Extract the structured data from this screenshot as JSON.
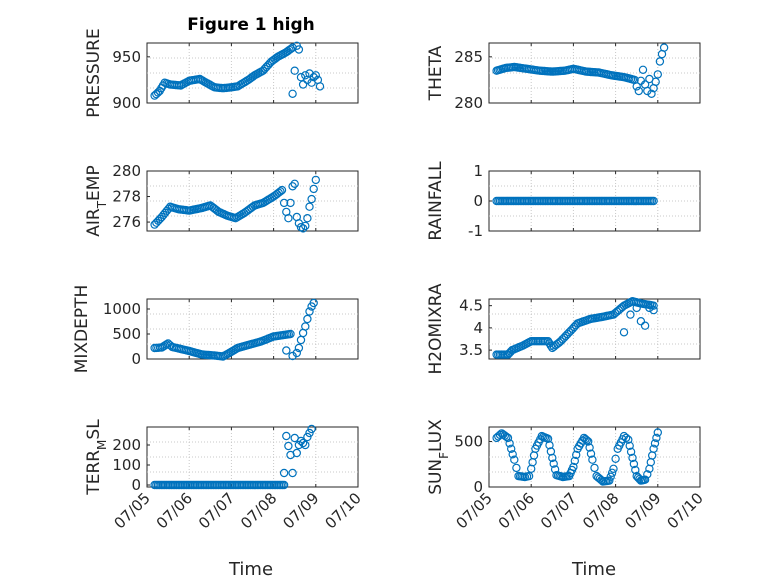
{
  "figure": {
    "title": "Figure 1 high",
    "marker_color": "#0072BD",
    "x_ticks": [
      "07/05",
      "07/06",
      "07/07",
      "07/08",
      "07/09",
      "07/10"
    ],
    "xlabel": "Time"
  },
  "chart_data": [
    {
      "type": "scatter",
      "ylabel": "PRESSURE",
      "ylabel_parts": [
        {
          "text": "PRESSURE",
          "sub": false
        }
      ],
      "title": "Figure 1 high",
      "xlim": [
        0,
        5
      ],
      "ylim": [
        900,
        965
      ],
      "yticks": [
        900,
        950
      ],
      "ytick_labels": [
        "900",
        "950"
      ],
      "show_xticklabels": false,
      "anchors": [
        [
          0.18,
          908
        ],
        [
          0.3,
          913
        ],
        [
          0.42,
          922
        ],
        [
          0.55,
          920
        ],
        [
          0.8,
          919
        ],
        [
          1.0,
          924
        ],
        [
          1.25,
          926
        ],
        [
          1.4,
          922
        ],
        [
          1.6,
          917
        ],
        [
          1.8,
          916
        ],
        [
          2.0,
          917
        ],
        [
          2.15,
          918
        ],
        [
          2.4,
          925
        ],
        [
          2.55,
          930
        ],
        [
          2.75,
          935
        ],
        [
          2.95,
          945
        ],
        [
          3.1,
          950
        ],
        [
          3.3,
          955
        ],
        [
          3.45,
          960
        ]
      ],
      "extra": [
        [
          3.45,
          910
        ],
        [
          3.5,
          935
        ],
        [
          3.55,
          962
        ],
        [
          3.6,
          958
        ],
        [
          3.65,
          928
        ],
        [
          3.7,
          920
        ],
        [
          3.75,
          930
        ],
        [
          3.8,
          925
        ],
        [
          3.85,
          932
        ],
        [
          3.9,
          922
        ],
        [
          3.95,
          928
        ],
        [
          4.0,
          930
        ],
        [
          4.05,
          925
        ],
        [
          4.1,
          918
        ]
      ]
    },
    {
      "type": "scatter",
      "ylabel": "THETA",
      "ylabel_parts": [
        {
          "text": "THETA",
          "sub": false
        }
      ],
      "xlim": [
        0,
        5
      ],
      "ylim": [
        280,
        286.5
      ],
      "yticks": [
        280,
        285
      ],
      "ytick_labels": [
        "280",
        "285"
      ],
      "show_xticklabels": false,
      "anchors": [
        [
          0.18,
          283.5
        ],
        [
          0.4,
          283.8
        ],
        [
          0.6,
          283.9
        ],
        [
          0.9,
          283.7
        ],
        [
          1.2,
          283.5
        ],
        [
          1.5,
          283.4
        ],
        [
          1.8,
          283.5
        ],
        [
          2.0,
          283.7
        ],
        [
          2.3,
          283.4
        ],
        [
          2.6,
          283.3
        ],
        [
          2.9,
          283.0
        ],
        [
          3.2,
          282.8
        ],
        [
          3.45,
          282.5
        ]
      ],
      "extra": [
        [
          3.5,
          281.8
        ],
        [
          3.55,
          281.3
        ],
        [
          3.6,
          282.4
        ],
        [
          3.65,
          283.6
        ],
        [
          3.7,
          282.0
        ],
        [
          3.75,
          281.3
        ],
        [
          3.8,
          282.6
        ],
        [
          3.85,
          281.0
        ],
        [
          3.9,
          281.6
        ],
        [
          3.95,
          282.3
        ],
        [
          4.0,
          283.1
        ],
        [
          4.05,
          284.5
        ],
        [
          4.1,
          285.3
        ],
        [
          4.15,
          286.0
        ]
      ]
    },
    {
      "type": "scatter",
      "ylabel": "AIR_TEMP",
      "ylabel_parts": [
        {
          "text": "AIR",
          "sub": false
        },
        {
          "text": "T",
          "sub": true
        },
        {
          "text": "EMP",
          "sub": false
        }
      ],
      "xlim": [
        0,
        5
      ],
      "ylim": [
        275.3,
        280
      ],
      "yticks": [
        276,
        278,
        280
      ],
      "ytick_labels": [
        "276",
        "278",
        "280"
      ],
      "show_xticklabels": false,
      "anchors": [
        [
          0.18,
          275.8
        ],
        [
          0.35,
          276.4
        ],
        [
          0.55,
          277.2
        ],
        [
          0.75,
          277.0
        ],
        [
          1.0,
          276.9
        ],
        [
          1.3,
          277.1
        ],
        [
          1.5,
          277.3
        ],
        [
          1.7,
          276.8
        ],
        [
          1.9,
          276.5
        ],
        [
          2.1,
          276.3
        ],
        [
          2.3,
          276.7
        ],
        [
          2.55,
          277.3
        ],
        [
          2.75,
          277.5
        ],
        [
          3.0,
          278.0
        ],
        [
          3.2,
          278.5
        ]
      ],
      "extra": [
        [
          3.25,
          277.5
        ],
        [
          3.3,
          276.8
        ],
        [
          3.35,
          276.3
        ],
        [
          3.4,
          277.5
        ],
        [
          3.45,
          278.8
        ],
        [
          3.5,
          279.0
        ],
        [
          3.55,
          276.4
        ],
        [
          3.6,
          275.9
        ],
        [
          3.65,
          275.6
        ],
        [
          3.7,
          275.5
        ],
        [
          3.75,
          275.7
        ],
        [
          3.8,
          276.3
        ],
        [
          3.85,
          277.2
        ],
        [
          3.9,
          277.8
        ],
        [
          3.95,
          278.6
        ],
        [
          4.0,
          279.3
        ]
      ]
    },
    {
      "type": "scatter",
      "ylabel": "RAINFALL",
      "ylabel_parts": [
        {
          "text": "RAINFALL",
          "sub": false
        }
      ],
      "xlim": [
        0,
        5
      ],
      "ylim": [
        -1,
        1
      ],
      "yticks": [
        -1,
        0,
        1
      ],
      "ytick_labels": [
        "-1",
        "0",
        "1"
      ],
      "show_xticklabels": false,
      "anchors": [
        [
          0.18,
          0
        ],
        [
          3.9,
          0
        ]
      ],
      "extra": []
    },
    {
      "type": "scatter",
      "ylabel": "MIXDEPTH",
      "ylabel_parts": [
        {
          "text": "MIXDEPTH",
          "sub": false
        }
      ],
      "xlim": [
        0,
        5
      ],
      "ylim": [
        0,
        1200
      ],
      "yticks": [
        0,
        500,
        1000
      ],
      "ytick_labels": [
        "0",
        "500",
        "1000"
      ],
      "show_xticklabels": false,
      "anchors": [
        [
          0.18,
          220
        ],
        [
          0.35,
          230
        ],
        [
          0.5,
          310
        ],
        [
          0.6,
          240
        ],
        [
          0.8,
          200
        ],
        [
          1.0,
          160
        ],
        [
          1.3,
          90
        ],
        [
          1.6,
          70
        ],
        [
          1.8,
          50
        ],
        [
          1.95,
          120
        ],
        [
          2.15,
          220
        ],
        [
          2.4,
          280
        ],
        [
          2.7,
          350
        ],
        [
          3.0,
          450
        ],
        [
          3.4,
          500
        ]
      ],
      "extra": [
        [
          3.3,
          170
        ],
        [
          3.45,
          60
        ],
        [
          3.55,
          120
        ],
        [
          3.6,
          220
        ],
        [
          3.65,
          380
        ],
        [
          3.7,
          520
        ],
        [
          3.75,
          650
        ],
        [
          3.8,
          800
        ],
        [
          3.85,
          950
        ],
        [
          3.9,
          1050
        ],
        [
          3.95,
          1120
        ]
      ]
    },
    {
      "type": "scatter",
      "ylabel": "H2OMIXRA",
      "ylabel_parts": [
        {
          "text": "H2OMIXRA",
          "sub": false
        }
      ],
      "xlim": [
        0,
        5
      ],
      "ylim": [
        3.3,
        4.65
      ],
      "yticks": [
        3.5,
        4,
        4.5
      ],
      "ytick_labels": [
        "3.5",
        "4",
        "4.5"
      ],
      "show_xticklabels": false,
      "anchors": [
        [
          0.18,
          3.4
        ],
        [
          0.45,
          3.4
        ],
        [
          0.55,
          3.5
        ],
        [
          0.8,
          3.6
        ],
        [
          1.0,
          3.7
        ],
        [
          1.4,
          3.7
        ],
        [
          1.5,
          3.55
        ],
        [
          1.7,
          3.7
        ],
        [
          1.9,
          3.9
        ],
        [
          2.1,
          4.1
        ],
        [
          2.4,
          4.2
        ],
        [
          2.7,
          4.25
        ],
        [
          2.95,
          4.3
        ],
        [
          3.2,
          4.5
        ],
        [
          3.4,
          4.6
        ],
        [
          3.6,
          4.55
        ],
        [
          3.9,
          4.5
        ]
      ],
      "extra": [
        [
          3.2,
          3.9
        ],
        [
          3.35,
          4.3
        ],
        [
          3.5,
          4.45
        ],
        [
          3.6,
          4.15
        ],
        [
          3.7,
          4.05
        ],
        [
          3.8,
          4.45
        ],
        [
          3.9,
          4.4
        ]
      ]
    },
    {
      "type": "scatter",
      "ylabel": "TERR_MSL",
      "ylabel_parts": [
        {
          "text": "TERR",
          "sub": false
        },
        {
          "text": "M",
          "sub": true
        },
        {
          "text": "SL",
          "sub": false
        }
      ],
      "xlim": [
        0,
        5
      ],
      "ylim": [
        -10,
        290
      ],
      "yticks": [
        0,
        100,
        200
      ],
      "ytick_labels": [
        "0",
        "100",
        "200"
      ],
      "show_xticklabels": true,
      "anchors": [
        [
          0.18,
          0
        ],
        [
          3.25,
          0
        ]
      ],
      "extra": [
        [
          3.25,
          60
        ],
        [
          3.3,
          245
        ],
        [
          3.35,
          195
        ],
        [
          3.4,
          150
        ],
        [
          3.45,
          60
        ],
        [
          3.5,
          235
        ],
        [
          3.55,
          160
        ],
        [
          3.6,
          200
        ],
        [
          3.65,
          220
        ],
        [
          3.7,
          210
        ],
        [
          3.75,
          200
        ],
        [
          3.8,
          240
        ],
        [
          3.85,
          260
        ],
        [
          3.9,
          280
        ]
      ]
    },
    {
      "type": "scatter",
      "ylabel": "SUN_FLUX",
      "ylabel_parts": [
        {
          "text": "SUN",
          "sub": false
        },
        {
          "text": "F",
          "sub": true
        },
        {
          "text": "LUX",
          "sub": false
        }
      ],
      "xlim": [
        0,
        5
      ],
      "ylim": [
        0,
        660
      ],
      "yticks": [
        0,
        500
      ],
      "ytick_labels": [
        "0",
        "500"
      ],
      "show_xticklabels": true,
      "anchors": [
        [
          0.18,
          540
        ],
        [
          0.3,
          590
        ],
        [
          0.45,
          540
        ],
        [
          0.6,
          300
        ],
        [
          0.7,
          120
        ],
        [
          0.85,
          110
        ],
        [
          0.95,
          120
        ],
        [
          1.0,
          200
        ],
        [
          1.1,
          420
        ],
        [
          1.25,
          560
        ],
        [
          1.4,
          530
        ],
        [
          1.5,
          320
        ],
        [
          1.6,
          130
        ],
        [
          1.75,
          110
        ],
        [
          1.9,
          120
        ],
        [
          2.0,
          220
        ],
        [
          2.1,
          420
        ],
        [
          2.25,
          540
        ],
        [
          2.35,
          500
        ],
        [
          2.45,
          300
        ],
        [
          2.55,
          120
        ],
        [
          2.7,
          60
        ],
        [
          2.85,
          70
        ],
        [
          2.95,
          200
        ],
        [
          3.05,
          420
        ],
        [
          3.2,
          560
        ],
        [
          3.3,
          520
        ],
        [
          3.4,
          320
        ],
        [
          3.5,
          120
        ],
        [
          3.6,
          70
        ],
        [
          3.7,
          80
        ],
        [
          3.8,
          200
        ],
        [
          3.9,
          420
        ],
        [
          4.0,
          600
        ]
      ],
      "extra": []
    }
  ]
}
